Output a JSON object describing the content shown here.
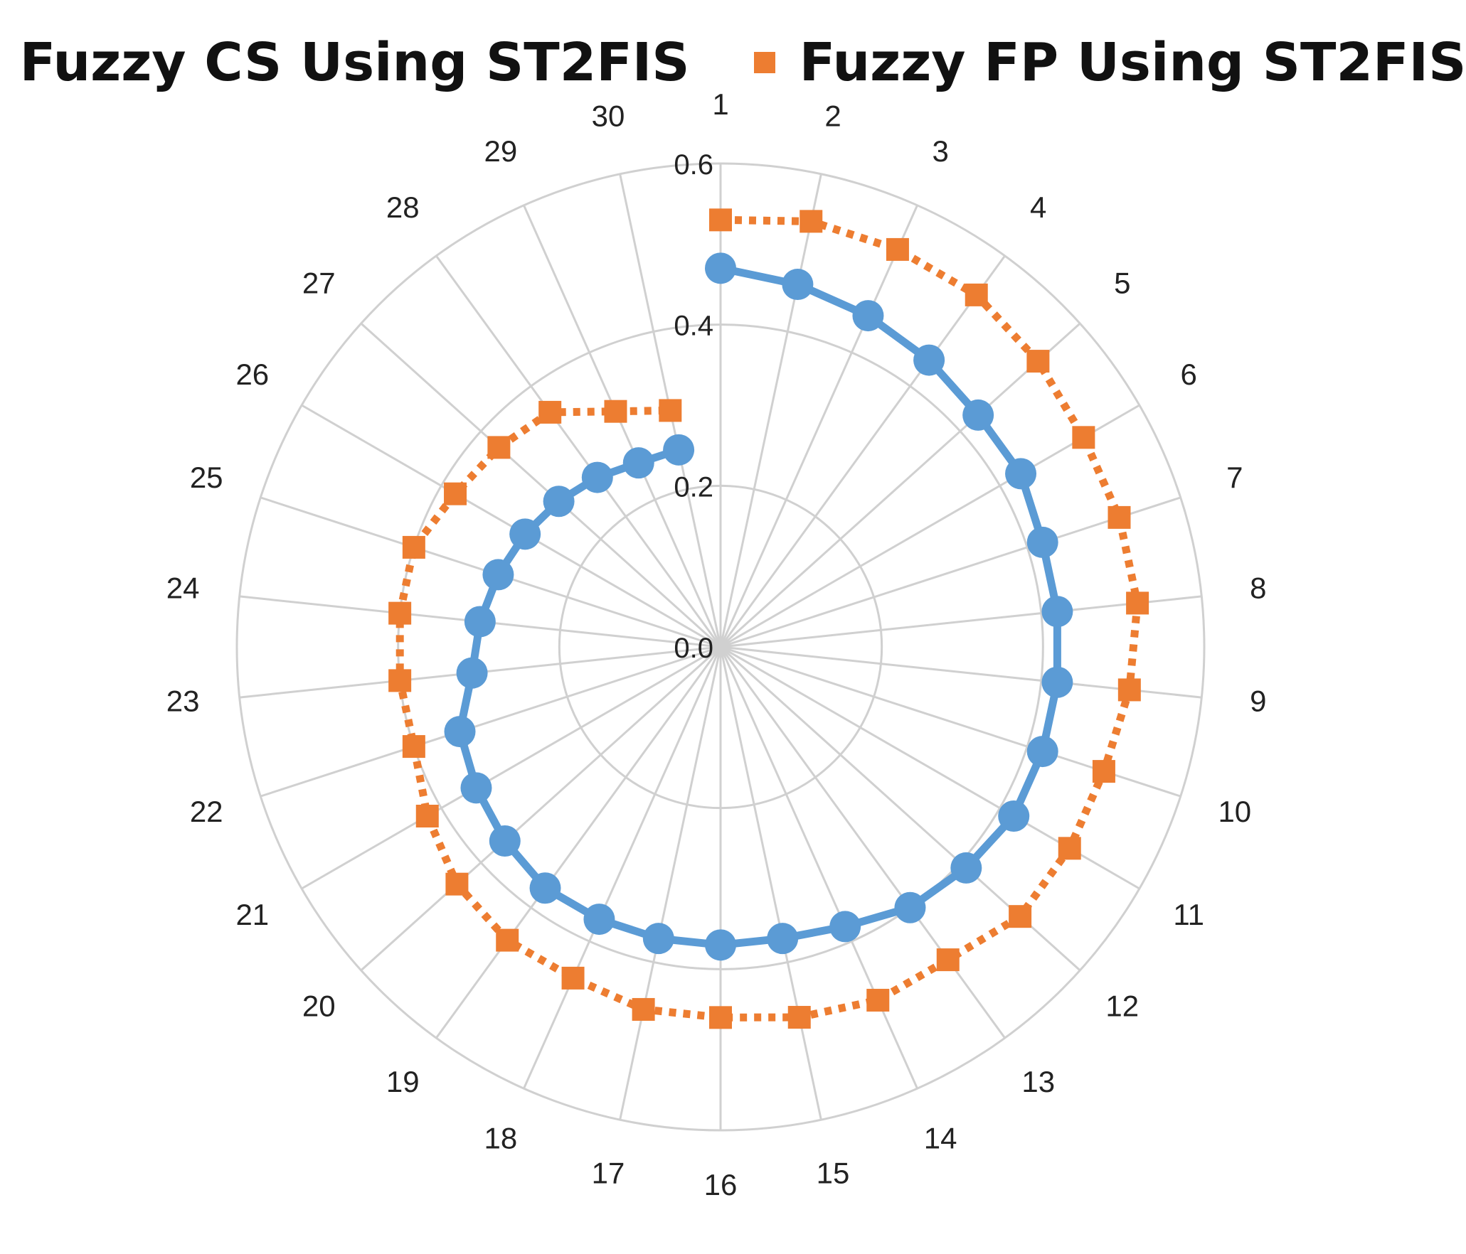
{
  "chart_data": {
    "type": "radar",
    "categories": [
      "1",
      "2",
      "3",
      "4",
      "5",
      "6",
      "7",
      "8",
      "9",
      "10",
      "11",
      "12",
      "13",
      "14",
      "15",
      "16",
      "17",
      "18",
      "19",
      "20",
      "21",
      "22",
      "23",
      "24",
      "25",
      "26",
      "27",
      "28",
      "29",
      "30"
    ],
    "radial_axis": {
      "min": 0,
      "max": 0.6,
      "tick_labels": [
        "0.0",
        "0.2",
        "0.4",
        "0.6"
      ]
    },
    "grid": true,
    "legend_position": "top",
    "series": [
      {
        "name": "Fuzzy CS Using ST2FIS",
        "color": "#5b9bd5",
        "marker": "circle",
        "line_style": "solid",
        "values": [
          0.47,
          0.46,
          0.45,
          0.44,
          0.43,
          0.43,
          0.42,
          0.42,
          0.42,
          0.42,
          0.42,
          0.41,
          0.4,
          0.38,
          0.37,
          0.37,
          0.37,
          0.37,
          0.37,
          0.36,
          0.35,
          0.34,
          0.31,
          0.3,
          0.29,
          0.28,
          0.27,
          0.26,
          0.25,
          0.25
        ]
      },
      {
        "name": "Fuzzy FP Using ST2FIS",
        "color": "#ed7d31",
        "marker": "square",
        "line_style": "dotted",
        "values": [
          0.53,
          0.54,
          0.54,
          0.54,
          0.53,
          0.52,
          0.52,
          0.52,
          0.51,
          0.5,
          0.5,
          0.5,
          0.48,
          0.48,
          0.47,
          0.46,
          0.46,
          0.45,
          0.45,
          0.44,
          0.42,
          0.4,
          0.4,
          0.4,
          0.4,
          0.38,
          0.37,
          0.36,
          0.32,
          0.3
        ]
      }
    ]
  }
}
